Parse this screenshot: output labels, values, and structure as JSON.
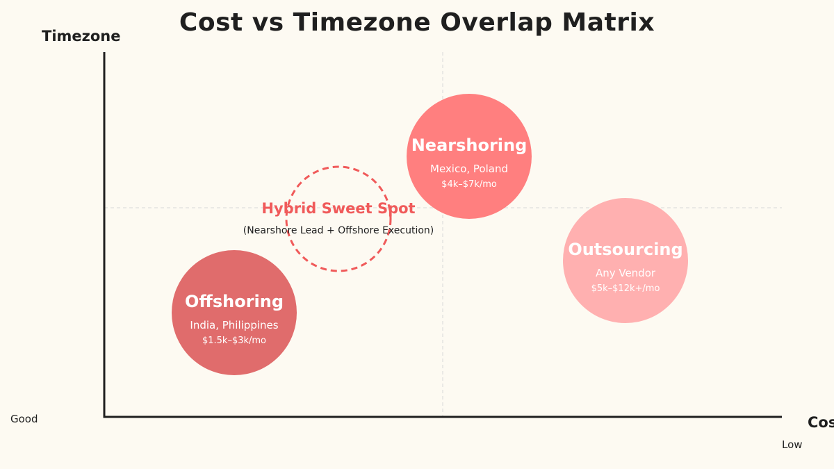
{
  "title": "Cost vs Timezone Overlap Matrix",
  "y_axis": {
    "label": "Timezone",
    "end_label": "Good"
  },
  "x_axis": {
    "label": "Cost",
    "end_label": "Low"
  },
  "colors": {
    "nearshoring": "#ff7f7f",
    "outsourcing": "#ffb0b0",
    "offshoring": "#e06c6c",
    "hybrid_accent": "#f05a5a"
  },
  "bubbles": {
    "nearshoring": {
      "name": "Nearshoring",
      "examples": "Mexico, Poland",
      "cost": "$4k–$7k/mo"
    },
    "outsourcing": {
      "name": "Outsourcing",
      "examples": "Any Vendor",
      "cost": "$5k–$12k+/mo"
    },
    "offshoring": {
      "name": "Offshoring",
      "examples": "India, Philippines",
      "cost": "$1.5k–$3k/mo"
    },
    "hybrid": {
      "name": "Hybrid Sweet Spot",
      "description": "(Nearshore Lead + Offshore Execution)"
    }
  }
}
